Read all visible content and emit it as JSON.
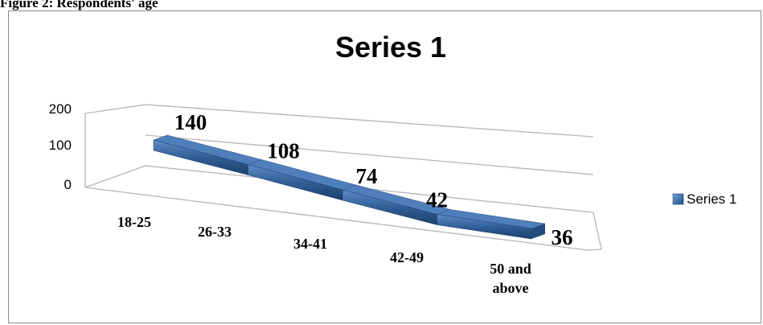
{
  "caption": "Figure 2: Respondents' age",
  "chart_data": {
    "type": "line",
    "title": "Series 1",
    "categories": [
      "18-25",
      "26-33",
      "34-41",
      "42-49",
      "50 and above"
    ],
    "series": [
      {
        "name": "Series 1",
        "values": [
          140,
          108,
          74,
          42,
          36
        ]
      }
    ],
    "yticks": [
      "200",
      "100",
      "0"
    ],
    "ylim": [
      0,
      200
    ],
    "data_labels": [
      "140",
      "108",
      "74",
      "42",
      "36"
    ],
    "legend": {
      "position": "right",
      "entries": [
        "Series 1"
      ]
    },
    "style": "3d",
    "series_color": "#2f5f96"
  }
}
